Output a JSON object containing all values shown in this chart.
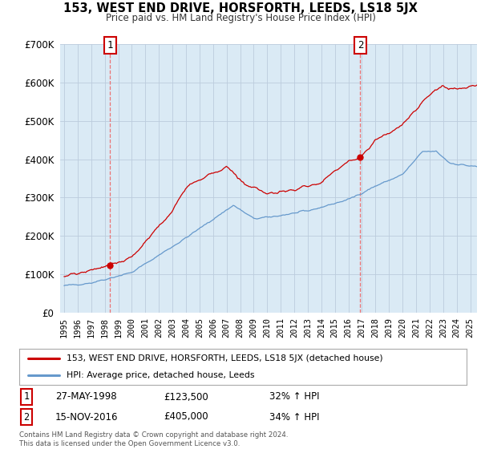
{
  "title": "153, WEST END DRIVE, HORSFORTH, LEEDS, LS18 5JX",
  "subtitle": "Price paid vs. HM Land Registry's House Price Index (HPI)",
  "property_label": "153, WEST END DRIVE, HORSFORTH, LEEDS, LS18 5JX (detached house)",
  "hpi_label": "HPI: Average price, detached house, Leeds",
  "sale1_date": "27-MAY-1998",
  "sale1_price": "£123,500",
  "sale1_hpi": "32% ↑ HPI",
  "sale1_year": 1998.38,
  "sale1_value": 123500,
  "sale2_date": "15-NOV-2016",
  "sale2_price": "£405,000",
  "sale2_hpi": "34% ↑ HPI",
  "sale2_year": 2016.88,
  "sale2_value": 405000,
  "property_color": "#cc0000",
  "hpi_color": "#6699cc",
  "chart_bg": "#daeaf5",
  "dashed_vline_color": "#ee6666",
  "background_color": "#ffffff",
  "grid_color": "#bbccdd",
  "ylim": [
    0,
    700000
  ],
  "xlim_start": 1994.7,
  "xlim_end": 2025.5,
  "ytick_values": [
    0,
    100000,
    200000,
    300000,
    400000,
    500000,
    600000,
    700000
  ],
  "x_ticks": [
    1995,
    1996,
    1997,
    1998,
    1999,
    2000,
    2001,
    2002,
    2003,
    2004,
    2005,
    2006,
    2007,
    2008,
    2009,
    2010,
    2011,
    2012,
    2013,
    2014,
    2015,
    2016,
    2017,
    2018,
    2019,
    2020,
    2021,
    2022,
    2023,
    2024,
    2025
  ],
  "copyright": "Contains HM Land Registry data © Crown copyright and database right 2024.\nThis data is licensed under the Open Government Licence v3.0."
}
